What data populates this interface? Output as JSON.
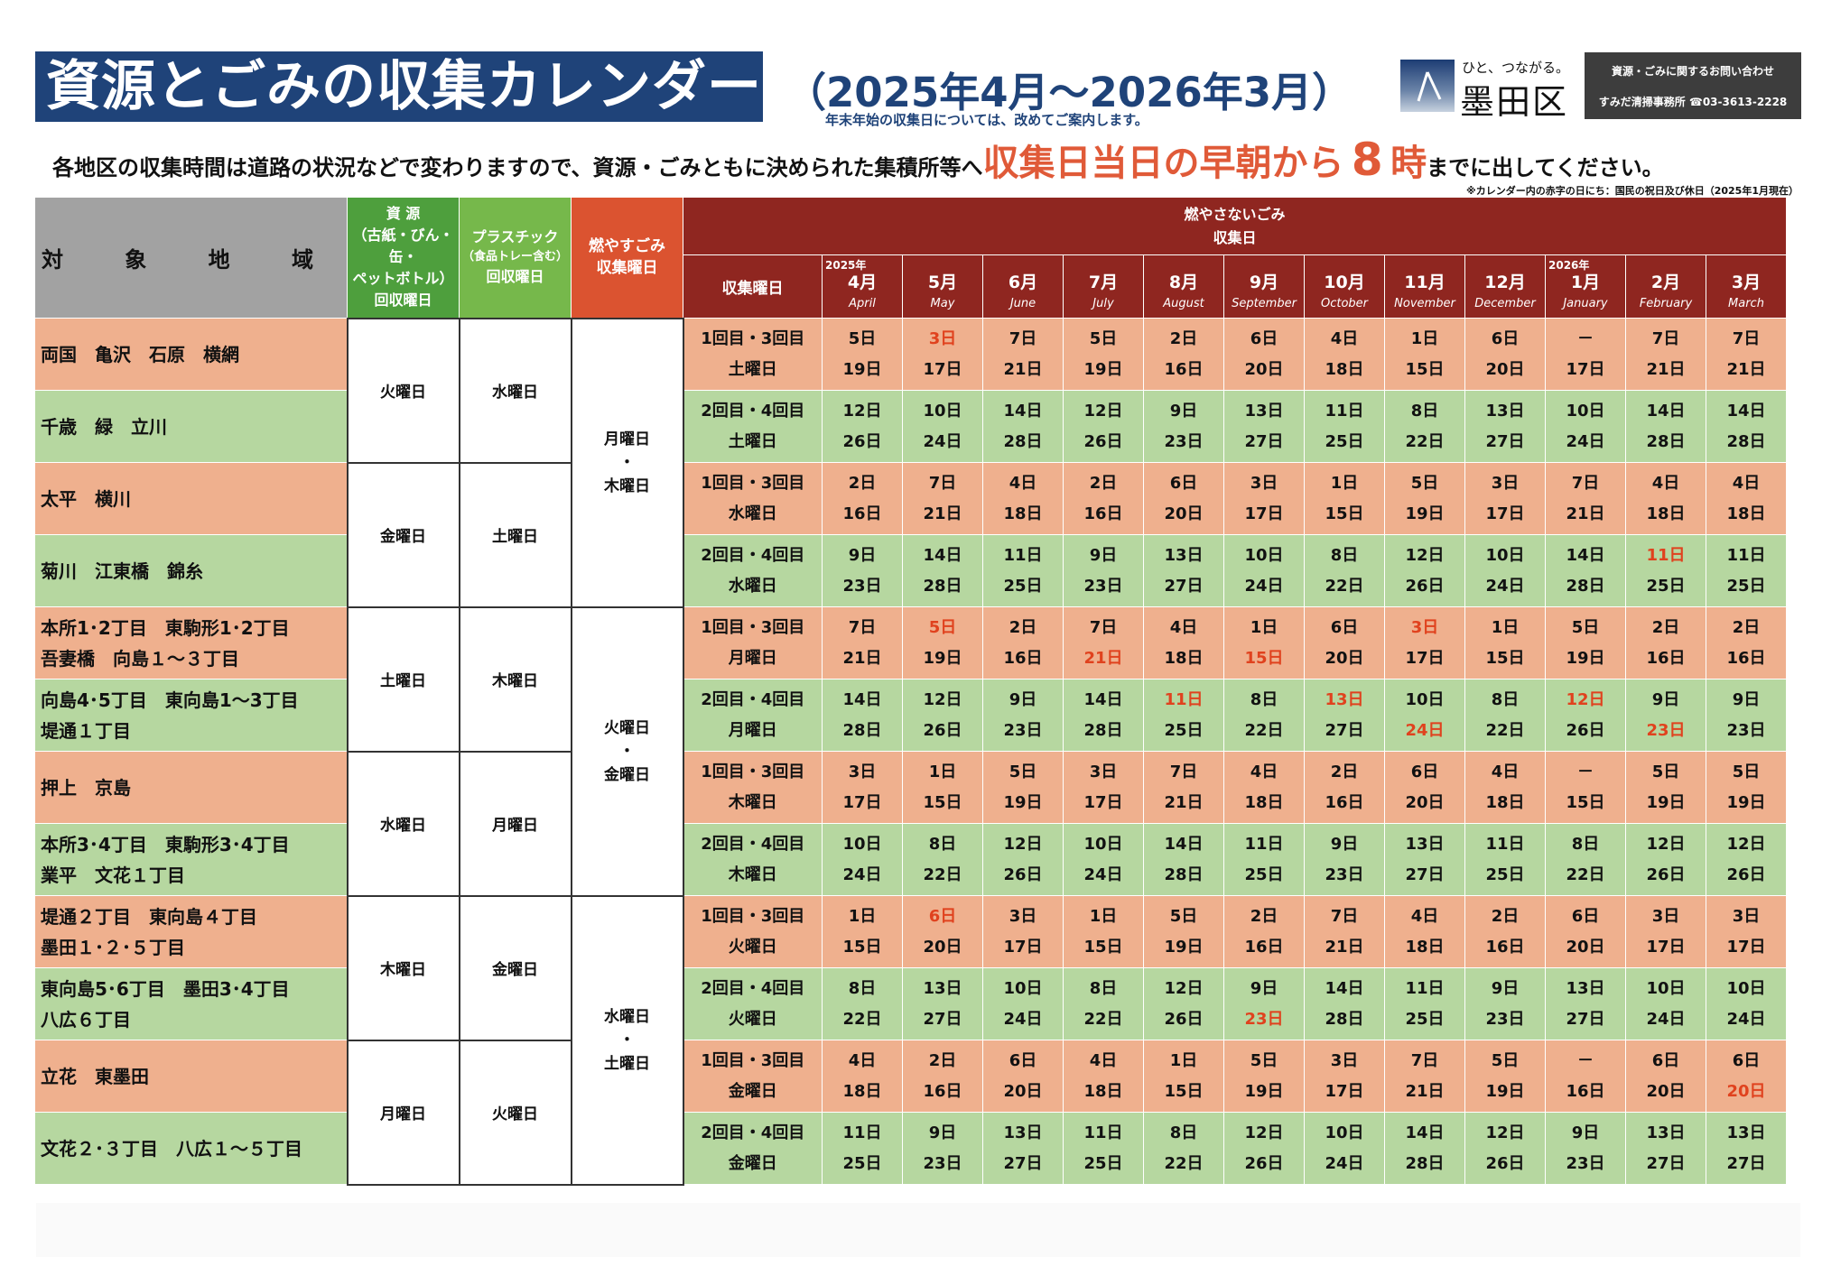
{
  "title": "資源とごみの収集カレンダー",
  "period": "（2025年4月～2026年3月）",
  "period_note": "年末年始の収集日については、改めてご案内します。",
  "logo": {
    "tagline": "ひと、つながる。",
    "name": "墨田区"
  },
  "contact": {
    "title": "資源・ごみに関するお問い合わせ",
    "office": "すみだ清掃事務所 ☎03-3613-2228"
  },
  "instruction": {
    "before": "各地区の収集時間は道路の状況などで変わりますので、資源・ごみともに決められた集積所等へ",
    "emph1": "収集日当日の早朝から",
    "emph_num": "8",
    "emph2": "時",
    "after": "までに出してください。"
  },
  "footnote": "※カレンダー内の赤字の日にち：国民の祝日及び休日（2025年1月現在）",
  "headers": {
    "area": "対 象 地 域",
    "resource": [
      "資 源",
      "（古紙・びん・缶・",
      "ペットボトル）",
      "回収曜日"
    ],
    "plastic": [
      "プラスチック",
      "（食品トレー含む）",
      "回収曜日"
    ],
    "burnable": [
      "燃やすごみ",
      "収集曜日"
    ],
    "nonburnable": [
      "燃やさないごみ",
      "収集日"
    ],
    "weekday_col": "収集曜日"
  },
  "months": [
    {
      "yr": "2025年",
      "mo": "4月",
      "en": "April"
    },
    {
      "yr": "",
      "mo": "5月",
      "en": "May"
    },
    {
      "yr": "",
      "mo": "6月",
      "en": "June"
    },
    {
      "yr": "",
      "mo": "7月",
      "en": "July"
    },
    {
      "yr": "",
      "mo": "8月",
      "en": "August"
    },
    {
      "yr": "",
      "mo": "9月",
      "en": "September"
    },
    {
      "yr": "",
      "mo": "10月",
      "en": "October"
    },
    {
      "yr": "",
      "mo": "11月",
      "en": "November"
    },
    {
      "yr": "",
      "mo": "12月",
      "en": "December"
    },
    {
      "yr": "2026年",
      "mo": "1月",
      "en": "January"
    },
    {
      "yr": "",
      "mo": "2月",
      "en": "February"
    },
    {
      "yr": "",
      "mo": "3月",
      "en": "March"
    }
  ],
  "resource_days": [
    "火曜日",
    "金曜日",
    "土曜日",
    "水曜日",
    "木曜日",
    "月曜日"
  ],
  "plastic_days": [
    "水曜日",
    "土曜日",
    "木曜日",
    "月曜日",
    "金曜日",
    "火曜日"
  ],
  "burnable_days": [
    [
      "月曜日",
      "・",
      "木曜日"
    ],
    [
      "火曜日",
      "・",
      "金曜日"
    ],
    [
      "水曜日",
      "・",
      "土曜日"
    ]
  ],
  "holiday_color": "#e0421e",
  "rows": [
    {
      "area": [
        "両国　亀沢　石原　横網"
      ],
      "week": "1回目・3回目",
      "wday": "土曜日",
      "d1": [
        "5日",
        "3日",
        "7日",
        "5日",
        "2日",
        "6日",
        "4日",
        "1日",
        "6日",
        "－",
        "7日",
        "7日"
      ],
      "d2": [
        "19日",
        "17日",
        "21日",
        "19日",
        "16日",
        "20日",
        "18日",
        "15日",
        "20日",
        "17日",
        "21日",
        "21日"
      ],
      "r1": [
        false,
        true,
        false,
        false,
        false,
        false,
        false,
        false,
        false,
        false,
        false,
        false
      ],
      "r2": [
        false,
        false,
        false,
        false,
        false,
        false,
        false,
        false,
        false,
        false,
        false,
        false
      ]
    },
    {
      "area": [
        "千歳　緑　立川"
      ],
      "week": "2回目・4回目",
      "wday": "土曜日",
      "d1": [
        "12日",
        "10日",
        "14日",
        "12日",
        "9日",
        "13日",
        "11日",
        "8日",
        "13日",
        "10日",
        "14日",
        "14日"
      ],
      "d2": [
        "26日",
        "24日",
        "28日",
        "26日",
        "23日",
        "27日",
        "25日",
        "22日",
        "27日",
        "24日",
        "28日",
        "28日"
      ],
      "r1": [
        false,
        false,
        false,
        false,
        false,
        false,
        false,
        false,
        false,
        false,
        false,
        false
      ],
      "r2": [
        false,
        false,
        false,
        false,
        false,
        false,
        false,
        false,
        false,
        false,
        false,
        false
      ]
    },
    {
      "area": [
        "太平　横川"
      ],
      "week": "1回目・3回目",
      "wday": "水曜日",
      "d1": [
        "2日",
        "7日",
        "4日",
        "2日",
        "6日",
        "3日",
        "1日",
        "5日",
        "3日",
        "7日",
        "4日",
        "4日"
      ],
      "d2": [
        "16日",
        "21日",
        "18日",
        "16日",
        "20日",
        "17日",
        "15日",
        "19日",
        "17日",
        "21日",
        "18日",
        "18日"
      ],
      "r1": [
        false,
        false,
        false,
        false,
        false,
        false,
        false,
        false,
        false,
        false,
        false,
        false
      ],
      "r2": [
        false,
        false,
        false,
        false,
        false,
        false,
        false,
        false,
        false,
        false,
        false,
        false
      ]
    },
    {
      "area": [
        "菊川　江東橋　錦糸"
      ],
      "week": "2回目・4回目",
      "wday": "水曜日",
      "d1": [
        "9日",
        "14日",
        "11日",
        "9日",
        "13日",
        "10日",
        "8日",
        "12日",
        "10日",
        "14日",
        "11日",
        "11日"
      ],
      "d2": [
        "23日",
        "28日",
        "25日",
        "23日",
        "27日",
        "24日",
        "22日",
        "26日",
        "24日",
        "28日",
        "25日",
        "25日"
      ],
      "r1": [
        false,
        false,
        false,
        false,
        false,
        false,
        false,
        false,
        false,
        false,
        true,
        false
      ],
      "r2": [
        false,
        false,
        false,
        false,
        false,
        false,
        false,
        false,
        false,
        false,
        false,
        false
      ]
    },
    {
      "area": [
        "本所1･2丁目　東駒形1･2丁目",
        "吾妻橋　向島１～３丁目"
      ],
      "week": "1回目・3回目",
      "wday": "月曜日",
      "d1": [
        "7日",
        "5日",
        "2日",
        "7日",
        "4日",
        "1日",
        "6日",
        "3日",
        "1日",
        "5日",
        "2日",
        "2日"
      ],
      "d2": [
        "21日",
        "19日",
        "16日",
        "21日",
        "18日",
        "15日",
        "20日",
        "17日",
        "15日",
        "19日",
        "16日",
        "16日"
      ],
      "r1": [
        false,
        true,
        false,
        false,
        false,
        false,
        false,
        true,
        false,
        false,
        false,
        false
      ],
      "r2": [
        false,
        false,
        false,
        true,
        false,
        true,
        false,
        false,
        false,
        false,
        false,
        false
      ]
    },
    {
      "area": [
        "向島4･5丁目　東向島1～3丁目",
        "堤通１丁目"
      ],
      "week": "2回目・4回目",
      "wday": "月曜日",
      "d1": [
        "14日",
        "12日",
        "9日",
        "14日",
        "11日",
        "8日",
        "13日",
        "10日",
        "8日",
        "12日",
        "9日",
        "9日"
      ],
      "d2": [
        "28日",
        "26日",
        "23日",
        "28日",
        "25日",
        "22日",
        "27日",
        "24日",
        "22日",
        "26日",
        "23日",
        "23日"
      ],
      "r1": [
        false,
        false,
        false,
        false,
        true,
        false,
        true,
        false,
        false,
        true,
        false,
        false
      ],
      "r2": [
        false,
        false,
        false,
        false,
        false,
        false,
        false,
        true,
        false,
        false,
        true,
        false
      ]
    },
    {
      "area": [
        "押上　京島"
      ],
      "week": "1回目・3回目",
      "wday": "木曜日",
      "d1": [
        "3日",
        "1日",
        "5日",
        "3日",
        "7日",
        "4日",
        "2日",
        "6日",
        "4日",
        "－",
        "5日",
        "5日"
      ],
      "d2": [
        "17日",
        "15日",
        "19日",
        "17日",
        "21日",
        "18日",
        "16日",
        "20日",
        "18日",
        "15日",
        "19日",
        "19日"
      ],
      "r1": [
        false,
        false,
        false,
        false,
        false,
        false,
        false,
        false,
        false,
        false,
        false,
        false
      ],
      "r2": [
        false,
        false,
        false,
        false,
        false,
        false,
        false,
        false,
        false,
        false,
        false,
        false
      ]
    },
    {
      "area": [
        "本所3･4丁目　東駒形3･4丁目",
        "業平　文花１丁目"
      ],
      "week": "2回目・4回目",
      "wday": "木曜日",
      "d1": [
        "10日",
        "8日",
        "12日",
        "10日",
        "14日",
        "11日",
        "9日",
        "13日",
        "11日",
        "8日",
        "12日",
        "12日"
      ],
      "d2": [
        "24日",
        "22日",
        "26日",
        "24日",
        "28日",
        "25日",
        "23日",
        "27日",
        "25日",
        "22日",
        "26日",
        "26日"
      ],
      "r1": [
        false,
        false,
        false,
        false,
        false,
        false,
        false,
        false,
        false,
        false,
        false,
        false
      ],
      "r2": [
        false,
        false,
        false,
        false,
        false,
        false,
        false,
        false,
        false,
        false,
        false,
        false
      ]
    },
    {
      "area": [
        "堤通２丁目　東向島４丁目",
        "墨田１･２･５丁目"
      ],
      "week": "1回目・3回目",
      "wday": "火曜日",
      "d1": [
        "1日",
        "6日",
        "3日",
        "1日",
        "5日",
        "2日",
        "7日",
        "4日",
        "2日",
        "6日",
        "3日",
        "3日"
      ],
      "d2": [
        "15日",
        "20日",
        "17日",
        "15日",
        "19日",
        "16日",
        "21日",
        "18日",
        "16日",
        "20日",
        "17日",
        "17日"
      ],
      "r1": [
        false,
        true,
        false,
        false,
        false,
        false,
        false,
        false,
        false,
        false,
        false,
        false
      ],
      "r2": [
        false,
        false,
        false,
        false,
        false,
        false,
        false,
        false,
        false,
        false,
        false,
        false
      ]
    },
    {
      "area": [
        "東向島5･6丁目　墨田3･4丁目",
        "八広６丁目"
      ],
      "week": "2回目・4回目",
      "wday": "火曜日",
      "d1": [
        "8日",
        "13日",
        "10日",
        "8日",
        "12日",
        "9日",
        "14日",
        "11日",
        "9日",
        "13日",
        "10日",
        "10日"
      ],
      "d2": [
        "22日",
        "27日",
        "24日",
        "22日",
        "26日",
        "23日",
        "28日",
        "25日",
        "23日",
        "27日",
        "24日",
        "24日"
      ],
      "r1": [
        false,
        false,
        false,
        false,
        false,
        false,
        false,
        false,
        false,
        false,
        false,
        false
      ],
      "r2": [
        false,
        false,
        false,
        false,
        false,
        true,
        false,
        false,
        false,
        false,
        false,
        false
      ]
    },
    {
      "area": [
        "立花　東墨田"
      ],
      "week": "1回目・3回目",
      "wday": "金曜日",
      "d1": [
        "4日",
        "2日",
        "6日",
        "4日",
        "1日",
        "5日",
        "3日",
        "7日",
        "5日",
        "－",
        "6日",
        "6日"
      ],
      "d2": [
        "18日",
        "16日",
        "20日",
        "18日",
        "15日",
        "19日",
        "17日",
        "21日",
        "19日",
        "16日",
        "20日",
        "20日"
      ],
      "r1": [
        false,
        false,
        false,
        false,
        false,
        false,
        false,
        false,
        false,
        false,
        false,
        false
      ],
      "r2": [
        false,
        false,
        false,
        false,
        false,
        false,
        false,
        false,
        false,
        false,
        false,
        true
      ]
    },
    {
      "area": [
        "文花２･３丁目　八広１～５丁目"
      ],
      "week": "2回目・4回目",
      "wday": "金曜日",
      "d1": [
        "11日",
        "9日",
        "13日",
        "11日",
        "8日",
        "12日",
        "10日",
        "14日",
        "12日",
        "9日",
        "13日",
        "13日"
      ],
      "d2": [
        "25日",
        "23日",
        "27日",
        "25日",
        "22日",
        "26日",
        "24日",
        "28日",
        "26日",
        "23日",
        "27日",
        "27日"
      ],
      "r1": [
        false,
        false,
        false,
        false,
        false,
        false,
        false,
        false,
        false,
        false,
        false,
        false
      ],
      "r2": [
        false,
        false,
        false,
        false,
        false,
        false,
        false,
        false,
        false,
        false,
        false,
        false
      ]
    }
  ]
}
